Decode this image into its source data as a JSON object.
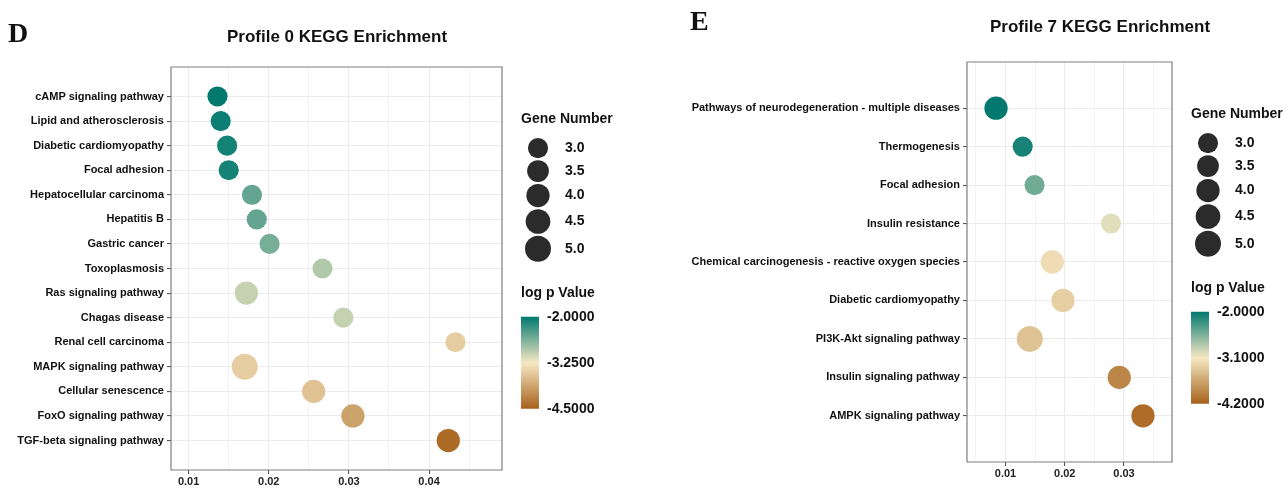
{
  "chart_data": [
    {
      "type": "bubble",
      "orientation": "horizontal",
      "title": "Profile 0 KEGG Enrichment",
      "annotations": [
        "D"
      ],
      "legend_title": "Gene Number",
      "clabel": "log p Value",
      "grid": true,
      "categories": [
        "cAMP signaling pathway",
        "Lipid and atherosclerosis",
        "Diabetic cardiomyopathy",
        "Focal adhesion",
        "Hepatocellular carcinoma",
        "Hepatitis B",
        "Gastric cancer",
        "Toxoplasmosis",
        "Ras signaling pathway",
        "Chagas disease",
        "Renal cell carcinoma",
        "MAPK signaling pathway",
        "Cellular senescence",
        "FoxO signaling pathway",
        "TGF-beta signaling pathway"
      ],
      "values": [
        0.0136,
        0.014,
        0.0148,
        0.015,
        0.0179,
        0.0185,
        0.0201,
        0.0267,
        0.0172,
        0.0293,
        0.0433,
        0.017,
        0.0256,
        0.0305,
        0.0424
      ],
      "sizes": [
        3,
        3,
        3,
        3,
        3,
        3,
        3,
        3,
        4,
        3,
        3,
        5,
        4,
        4,
        4
      ],
      "cvalues": [
        -2.0,
        -2.05,
        -2.1,
        -2.1,
        -2.5,
        -2.5,
        -2.6,
        -2.9,
        -3.0,
        -3.0,
        -3.5,
        -3.5,
        -3.6,
        -3.9,
        -4.4
      ],
      "size_legend": [
        {
          "value": 3,
          "label": "3.0"
        },
        {
          "value": 3.5,
          "label": "3.5"
        },
        {
          "value": 4,
          "label": "4.0"
        },
        {
          "value": 4.5,
          "label": "4.5"
        },
        {
          "value": 5,
          "label": "5.0"
        }
      ],
      "clim": [
        -4.5,
        -2
      ],
      "cticks": [
        {
          "value": -2,
          "label": "-2.0000"
        },
        {
          "value": -3.25,
          "label": "-3.2500"
        },
        {
          "value": -4.5,
          "label": "-4.5000"
        }
      ],
      "xlim": [
        0.0078,
        0.0491
      ],
      "xticks": [
        0.01,
        {
          "value": 0.015,
          "label": null
        },
        0.02,
        {
          "value": 0.025,
          "label": null
        },
        0.03,
        {
          "value": 0.035,
          "label": null
        },
        0.04,
        {
          "value": 0.045,
          "label": null
        }
      ]
    },
    {
      "type": "bubble",
      "orientation": "horizontal",
      "title": "Profile 7 KEGG Enrichment",
      "annotations": [
        "E"
      ],
      "legend_title": "Gene Number",
      "clabel": "log p Value",
      "grid": true,
      "categories": [
        "Pathways of neurodegeneration - multiple diseases",
        "Thermogenesis",
        "Focal adhesion",
        "Insulin resistance",
        "Chemical carcinogenesis - reactive oxygen species",
        "Diabetic cardiomyopathy",
        "PI3K-Akt signaling pathway",
        "Insulin signaling pathway",
        "AMPK signaling pathway"
      ],
      "values": [
        0.0084,
        0.0129,
        0.0149,
        0.0278,
        0.0179,
        0.0197,
        0.0141,
        0.0292,
        0.0332
      ],
      "sizes": [
        4,
        3,
        3,
        3,
        4,
        4,
        5,
        4,
        4
      ],
      "cvalues": [
        -2.0,
        -2.1,
        -2.5,
        -3.0,
        -3.2,
        -3.3,
        -3.4,
        -3.9,
        -4.1
      ],
      "size_legend": [
        {
          "value": 3,
          "label": "3.0"
        },
        {
          "value": 3.5,
          "label": "3.5"
        },
        {
          "value": 4,
          "label": "4.0"
        },
        {
          "value": 4.5,
          "label": "4.5"
        },
        {
          "value": 5,
          "label": "5.0"
        }
      ],
      "clim": [
        -4.2,
        -2
      ],
      "cticks": [
        {
          "value": -2,
          "label": "-2.0000"
        },
        {
          "value": -3.1,
          "label": "-3.1000"
        },
        {
          "value": -4.2,
          "label": "-4.2000"
        }
      ],
      "xlim": [
        0.0035,
        0.0381
      ],
      "xticks": [
        {
          "value": 0.005,
          "label": null
        },
        0.01,
        {
          "value": 0.015,
          "label": null
        },
        0.02,
        {
          "value": 0.025,
          "label": null
        },
        0.03,
        {
          "value": 0.035,
          "label": null
        }
      ]
    }
  ]
}
